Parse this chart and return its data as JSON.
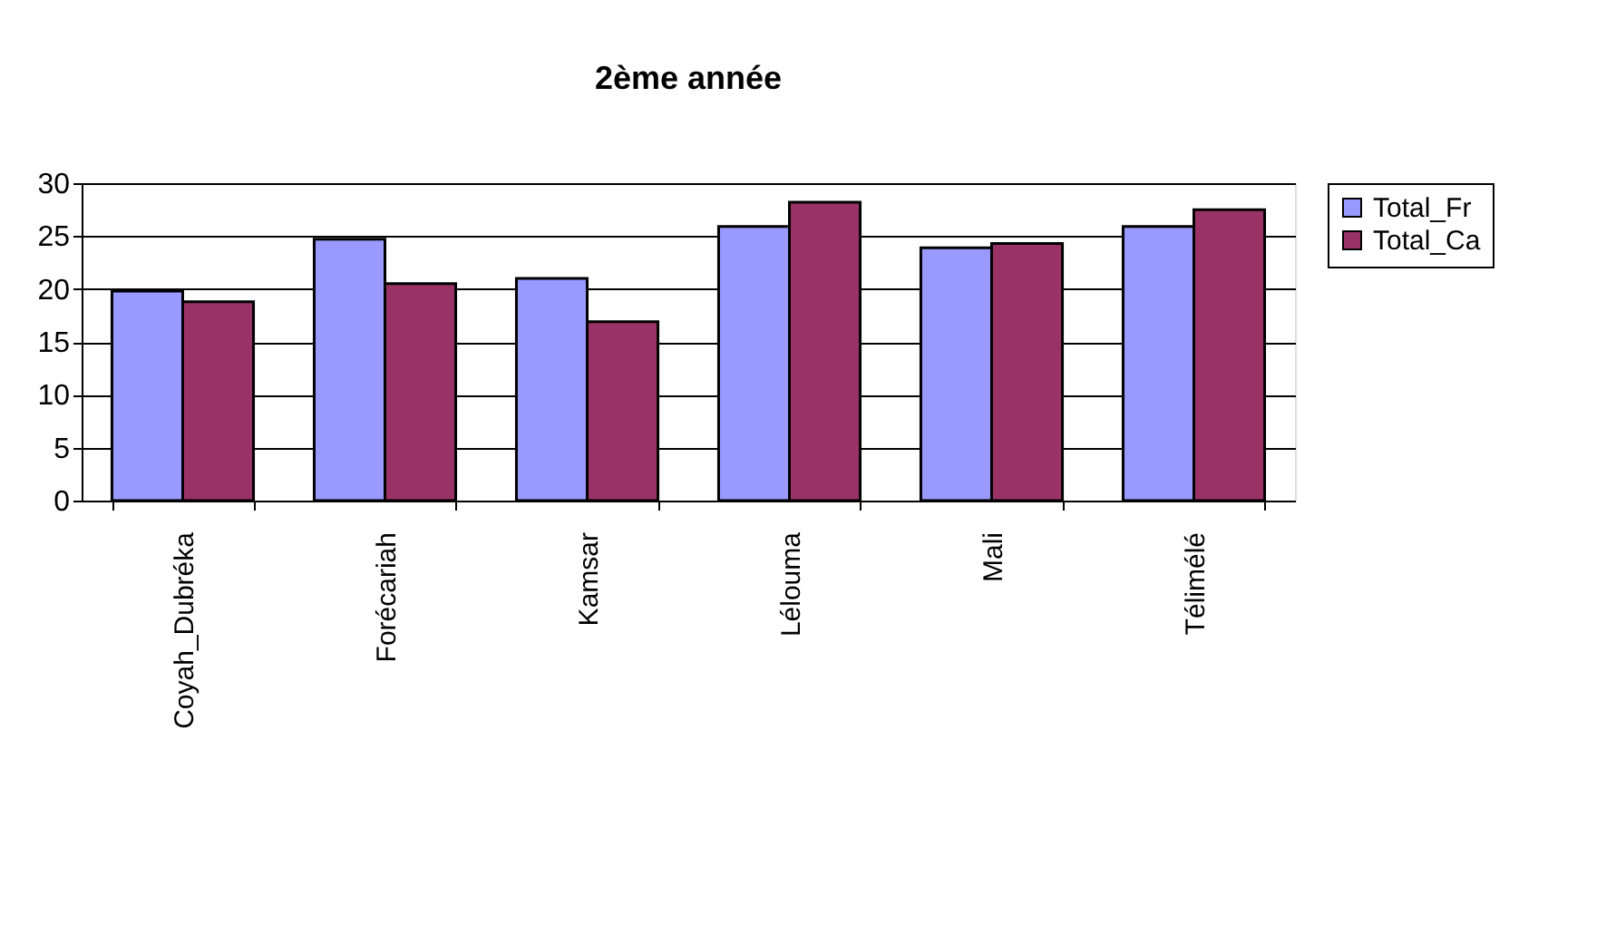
{
  "chart_data": {
    "type": "bar",
    "title": "2ème année",
    "categories": [
      "Coyah_Dubréka",
      "Forécariah",
      "Kamsar",
      "Lélouma",
      "Mali",
      "Télimélé"
    ],
    "series": [
      {
        "name": "Total_Fr",
        "color": "#9999ff",
        "values": [
          19.8,
          24.7,
          21.0,
          25.9,
          23.9,
          25.9
        ]
      },
      {
        "name": "Total_Ca",
        "color": "#993366",
        "values": [
          18.8,
          20.5,
          16.9,
          28.2,
          24.3,
          27.5
        ]
      }
    ],
    "ylim": [
      0,
      30
    ],
    "yticks": [
      0,
      5,
      10,
      15,
      20,
      25,
      30
    ],
    "grid": "y",
    "legend": "right"
  }
}
